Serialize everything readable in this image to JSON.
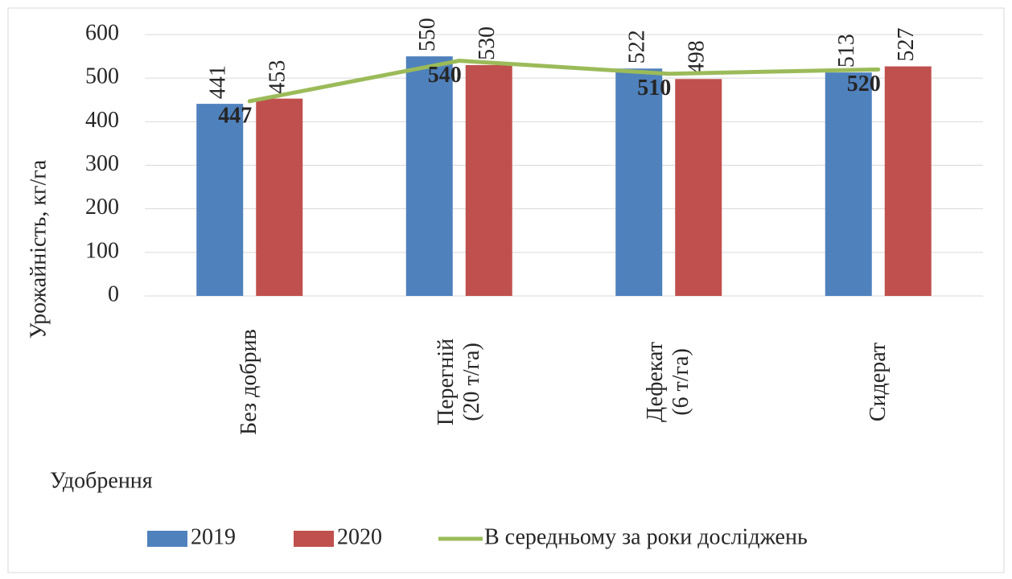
{
  "chart_data": {
    "type": "bar",
    "y_label": "Урожайність, кг/га",
    "x_label": "Удобрення",
    "categories": [
      "Без добрив",
      "Перегній\n(20 т/га)",
      "Дефекат\n(6 т/га)",
      "Сидерат"
    ],
    "series": [
      {
        "name": "2019",
        "color": "#4f81bd",
        "type": "bar",
        "values": [
          441,
          550,
          522,
          513
        ]
      },
      {
        "name": "2020",
        "color": "#c0504d",
        "type": "bar",
        "values": [
          453,
          530,
          498,
          527
        ]
      },
      {
        "name": "В середньому за роки досліджень",
        "color": "#9bbb59",
        "type": "line",
        "values": [
          447,
          540,
          510,
          520
        ]
      }
    ],
    "ylim": [
      0,
      600
    ],
    "yticks": [
      0,
      100,
      200,
      300,
      400,
      500,
      600
    ],
    "grid": true,
    "legend": "bottom"
  }
}
